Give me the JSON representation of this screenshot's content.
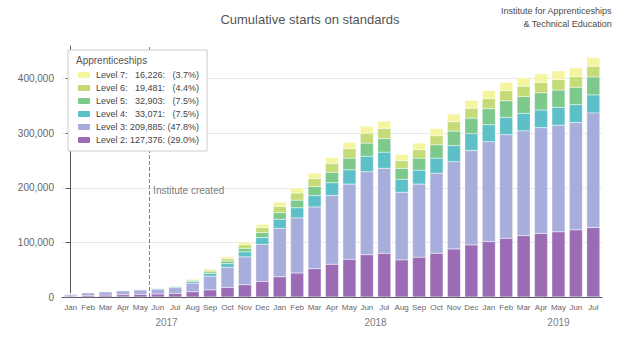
{
  "chart_data": {
    "type": "bar",
    "stacked": true,
    "title": "Cumulative starts on standards",
    "categories": [
      "Jan",
      "Feb",
      "Mar",
      "Apr",
      "May",
      "Jun",
      "Jul",
      "Aug",
      "Sep",
      "Oct",
      "Nov",
      "Dec",
      "Jan",
      "Feb",
      "Mar",
      "Apr",
      "May",
      "Jun",
      "Jul",
      "Aug",
      "Sep",
      "Oct",
      "Nov",
      "Dec",
      "Jan",
      "Feb",
      "Mar",
      "Apr",
      "May",
      "Jun",
      "Jul"
    ],
    "series": [
      {
        "name": "Level 2: 127,376: (29.0%)",
        "color": "#9B6BB5",
        "values": [
          1800,
          2800,
          3500,
          4200,
          4800,
          5500,
          6500,
          9500,
          13000,
          17500,
          22500,
          28500,
          37000,
          44000,
          52000,
          60000,
          69000,
          77500,
          80000,
          68000,
          73000,
          80000,
          88000,
          95500,
          101500,
          107500,
          112500,
          116500,
          119500,
          123000,
          127376
        ]
      },
      {
        "name": "Level 3: 209,885: (47.8%)",
        "color": "#A8AEDB",
        "values": [
          3500,
          5000,
          6000,
          7000,
          8000,
          9000,
          10500,
          16000,
          25000,
          37000,
          51000,
          68000,
          89000,
          101000,
          113000,
          126000,
          138000,
          152000,
          156000,
          124000,
          134000,
          147000,
          160000,
          173000,
          183000,
          190000,
          192000,
          194000,
          195500,
          196800,
          209885
        ]
      },
      {
        "name": "Level 4:   33,071:   (7.5%)",
        "color": "#5DBFC7",
        "values": [
          300,
          450,
          600,
          800,
          1000,
          1200,
          1600,
          3000,
          4800,
          6800,
          9200,
          12500,
          16500,
          18500,
          21000,
          23500,
          26000,
          28500,
          29500,
          23500,
          25500,
          27500,
          29500,
          30800,
          31200,
          31600,
          31900,
          32200,
          32400,
          32600,
          33071
        ]
      },
      {
        "name": "Level 5:   32,903:   (7.5%)",
        "color": "#7DC98C",
        "values": [
          200,
          300,
          400,
          500,
          600,
          700,
          900,
          1800,
          3200,
          4600,
          6500,
          9000,
          12000,
          14000,
          16500,
          19000,
          21500,
          24000,
          25000,
          20000,
          22000,
          24500,
          26500,
          28500,
          29500,
          30500,
          31000,
          31500,
          31900,
          32000,
          32903
        ]
      },
      {
        "name": "Level 6:   19,481:   (4.4%)",
        "color": "#C5DB78",
        "values": [
          150,
          230,
          320,
          420,
          520,
          620,
          820,
          1800,
          3200,
          4600,
          6500,
          9000,
          11500,
          13000,
          14500,
          16000,
          17000,
          18000,
          18300,
          14500,
          15500,
          16500,
          17200,
          18000,
          18300,
          18600,
          18900,
          19100,
          19200,
          19300,
          19481
        ]
      },
      {
        "name": "Level 7:   16,226:   (3.7%)",
        "color": "#F5F5A0",
        "values": [
          80,
          160,
          240,
          340,
          440,
          540,
          720,
          1400,
          2300,
          3300,
          4700,
          6200,
          8000,
          9000,
          10000,
          11000,
          12000,
          13000,
          13500,
          11000,
          12000,
          13000,
          14000,
          14500,
          14800,
          15100,
          15400,
          15700,
          15900,
          16100,
          16226
        ]
      }
    ],
    "legend": "upper left",
    "legend_title": "Apprenticeships",
    "ylim": [
      0,
      460000
    ],
    "yticks": [
      0,
      {
        "value": 100000,
        "label": "100,000"
      },
      {
        "value": 200000,
        "label": "200,000"
      },
      {
        "value": 300000,
        "label": "300,000"
      },
      {
        "value": 400000,
        "label": "400,000"
      }
    ],
    "grid": true,
    "annotations": [
      {
        "text": "Institute created",
        "x": 4.5,
        "y": 195000,
        "line_style": "dashed"
      },
      {
        "text": "2017",
        "x": 5.5
      },
      {
        "text": "2018",
        "x": 17.5
      },
      {
        "text": "2019",
        "x": 28.0
      },
      {
        "text": "Institute for Apprenticeships"
      },
      {
        "text": "& Technical Education"
      }
    ]
  }
}
